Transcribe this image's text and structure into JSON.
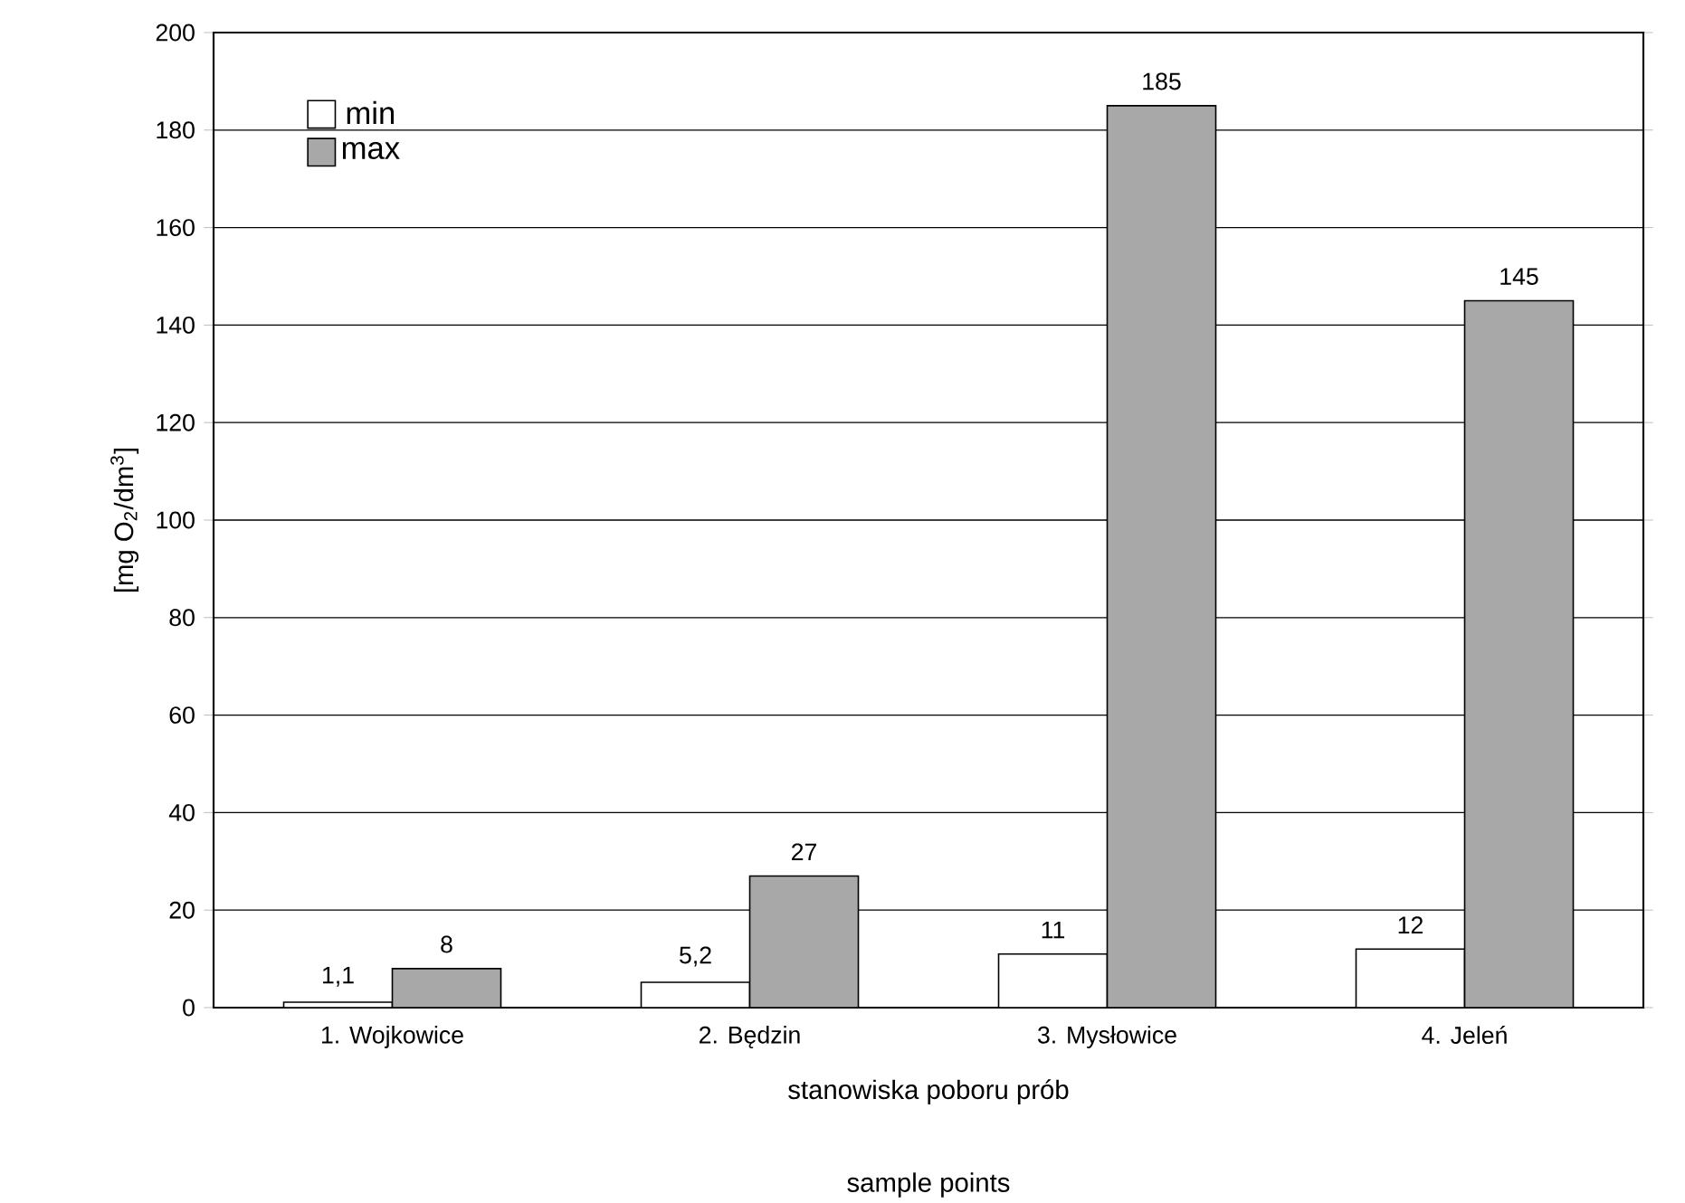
{
  "chart_data": {
    "type": "bar",
    "ylabel": "[mg O$_{2}$/dm$^{3}$]",
    "xlabel": "stanowiska poboru prób",
    "annotations": [
      "sample points"
    ],
    "categories": [
      "1. Wojkowice",
      "2. Będzin",
      "3. Mysłowice",
      "4. Jeleń"
    ],
    "series": [
      {
        "name": "min",
        "color": "#ffffff",
        "values": [
          1.1,
          5.2,
          11,
          12
        ],
        "value_labels": [
          "1,1",
          "5,2",
          "11",
          "12"
        ]
      },
      {
        "name": "max",
        "color": "#a8a8a8",
        "values": [
          8,
          27,
          185,
          145
        ],
        "value_labels": [
          "8",
          "27",
          "185",
          "145"
        ]
      }
    ],
    "ylim": [
      0,
      200
    ],
    "yticks": [
      0,
      20,
      40,
      60,
      80,
      100,
      120,
      140,
      160,
      180,
      200
    ],
    "grid": "y",
    "legend": "top left"
  }
}
